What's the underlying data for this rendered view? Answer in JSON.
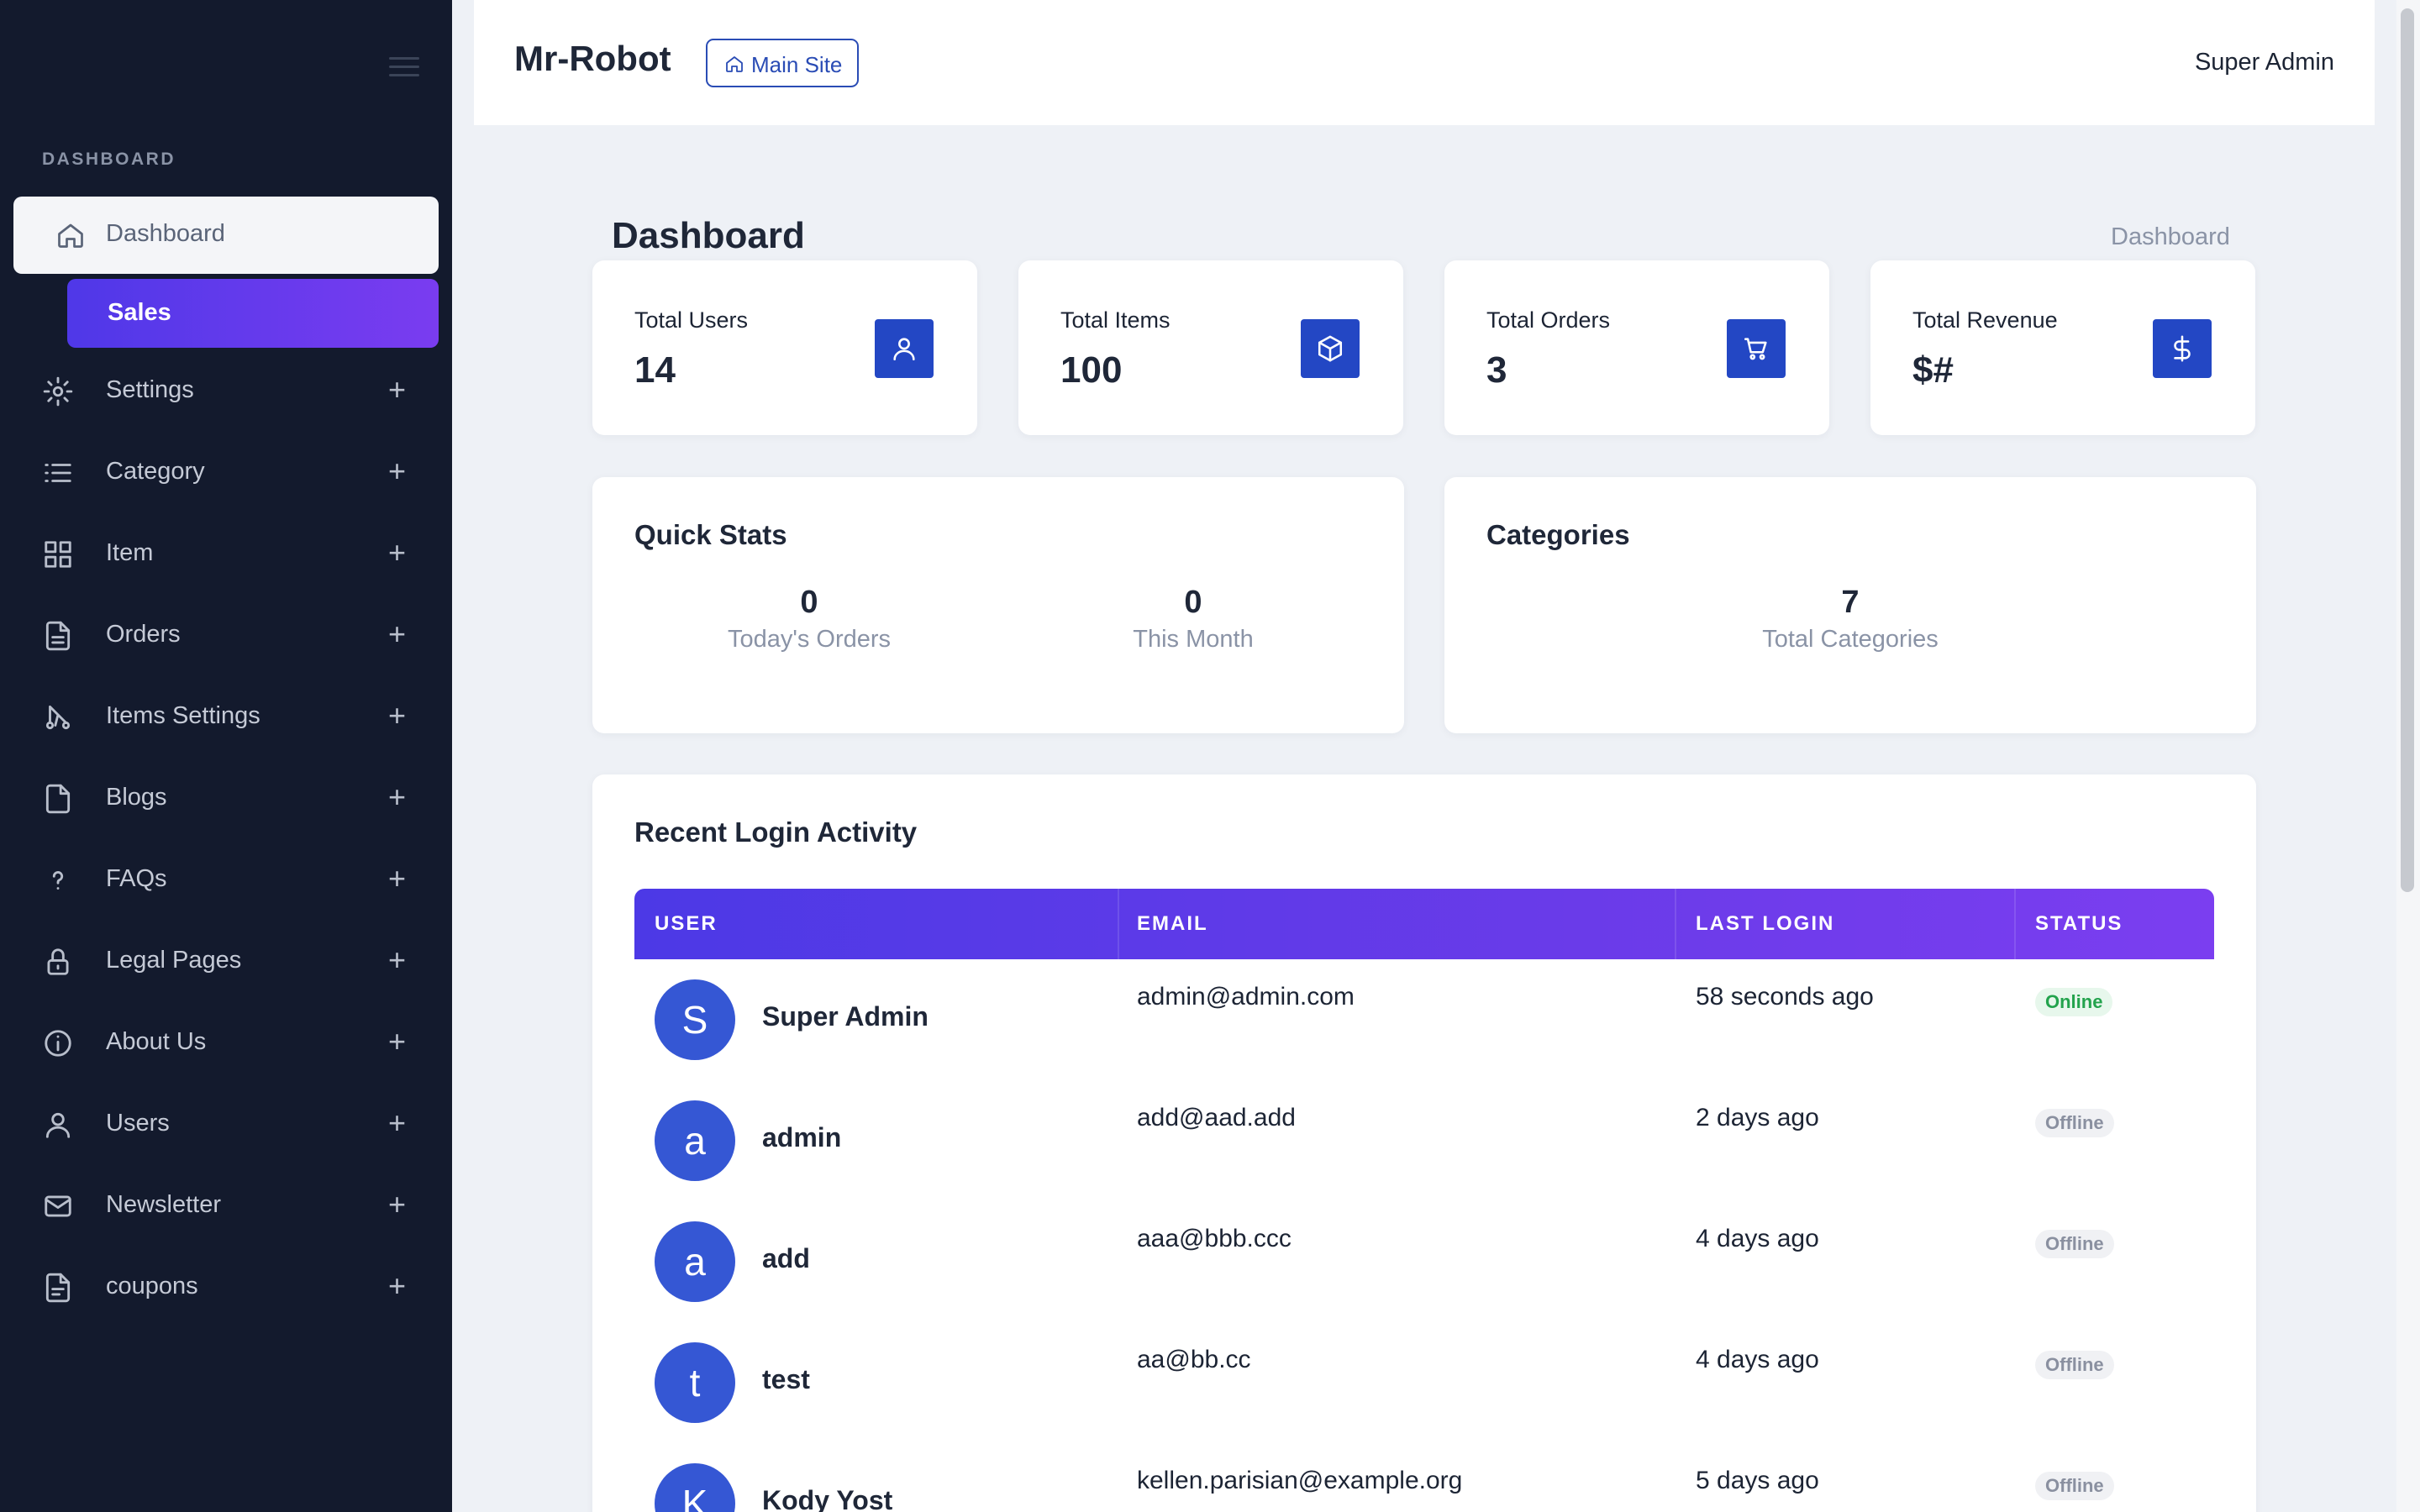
{
  "sidebar": {
    "section_label": "DASHBOARD",
    "active_item": {
      "label": "Dashboard",
      "icon": "home-icon"
    },
    "sub_item": {
      "label": "Sales"
    },
    "items": [
      {
        "label": "Settings",
        "icon": "gear-icon"
      },
      {
        "label": "Category",
        "icon": "list-icon"
      },
      {
        "label": "Item",
        "icon": "grid-icon"
      },
      {
        "label": "Orders",
        "icon": "document-icon"
      },
      {
        "label": "Items Settings",
        "icon": "sliders-icon"
      },
      {
        "label": "Blogs",
        "icon": "file-icon"
      },
      {
        "label": "FAQs",
        "icon": "question-icon"
      },
      {
        "label": "Legal Pages",
        "icon": "lock-icon"
      },
      {
        "label": "About Us",
        "icon": "info-icon"
      },
      {
        "label": "Users",
        "icon": "user-icon"
      },
      {
        "label": "Newsletter",
        "icon": "mail-icon"
      },
      {
        "label": "coupons",
        "icon": "coupon-icon"
      }
    ],
    "expand_symbol": "+"
  },
  "topbar": {
    "brand": "Mr-Robot",
    "main_site_label": "Main Site",
    "user_name": "Super Admin"
  },
  "page": {
    "title": "Dashboard",
    "breadcrumb": "Dashboard"
  },
  "stats": [
    {
      "title": "Total Users",
      "value": "14",
      "icon": "user-icon"
    },
    {
      "title": "Total Items",
      "value": "100",
      "icon": "box-icon"
    },
    {
      "title": "Total Orders",
      "value": "3",
      "icon": "cart-icon"
    },
    {
      "title": "Total Revenue",
      "value": "$#",
      "icon": "dollar-icon"
    }
  ],
  "quick_stats": {
    "title": "Quick Stats",
    "today_orders": {
      "value": "0",
      "label": "Today's Orders"
    },
    "this_month": {
      "value": "0",
      "label": "This Month"
    }
  },
  "categories": {
    "title": "Categories",
    "total": {
      "value": "7",
      "label": "Total Categories"
    }
  },
  "login_activity": {
    "title": "Recent Login Activity",
    "columns": [
      "USER",
      "EMAIL",
      "LAST LOGIN",
      "STATUS"
    ],
    "rows": [
      {
        "initial": "S",
        "user": "Super Admin",
        "email": "admin@admin.com",
        "last_login": "58 seconds ago",
        "status": "Online"
      },
      {
        "initial": "a",
        "user": "admin",
        "email": "add@aad.add",
        "last_login": "2 days ago",
        "status": "Offline"
      },
      {
        "initial": "a",
        "user": "add",
        "email": "aaa@bbb.ccc",
        "last_login": "4 days ago",
        "status": "Offline"
      },
      {
        "initial": "t",
        "user": "test",
        "email": "aa@bb.cc",
        "last_login": "4 days ago",
        "status": "Offline"
      },
      {
        "initial": "K",
        "user": "Kody Yost",
        "email": "kellen.parisian@example.org",
        "last_login": "5 days ago",
        "status": "Offline"
      }
    ]
  },
  "colors": {
    "sidebar_bg": "#131a2d",
    "accent": "#2347c4",
    "gradient_start": "#4c39e6",
    "gradient_end": "#7b3ef0",
    "online": "#23a34d"
  }
}
